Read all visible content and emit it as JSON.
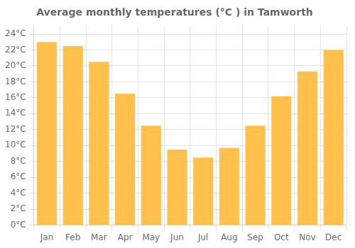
{
  "chart_data": {
    "type": "bar",
    "title": "Average monthly temperatures (°C ) in Tamworth",
    "categories": [
      "Jan",
      "Feb",
      "Mar",
      "Apr",
      "May",
      "Jun",
      "Jul",
      "Aug",
      "Sep",
      "Oct",
      "Nov",
      "Dec"
    ],
    "values": [
      23,
      22.5,
      20.5,
      16.5,
      12.5,
      9.5,
      8.5,
      9.7,
      12.5,
      16.2,
      19.3,
      22
    ],
    "color": "#FFC04C",
    "ylim": [
      0,
      25
    ],
    "yticks": [
      {
        "value": 0,
        "label": "0°C"
      },
      {
        "value": 2,
        "label": "2°C"
      },
      {
        "value": 4,
        "label": "4°C"
      },
      {
        "value": 6,
        "label": "6°C"
      },
      {
        "value": 8,
        "label": "8°C"
      },
      {
        "value": 10,
        "label": "10°C"
      },
      {
        "value": 12,
        "label": "12°C"
      },
      {
        "value": 14,
        "label": "14°C"
      },
      {
        "value": 16,
        "label": "16°C"
      },
      {
        "value": 18,
        "label": "18°C"
      },
      {
        "value": 20,
        "label": "20°C"
      },
      {
        "value": 22,
        "label": "22°C"
      },
      {
        "value": 24,
        "label": "24°C"
      }
    ],
    "grid": true
  }
}
